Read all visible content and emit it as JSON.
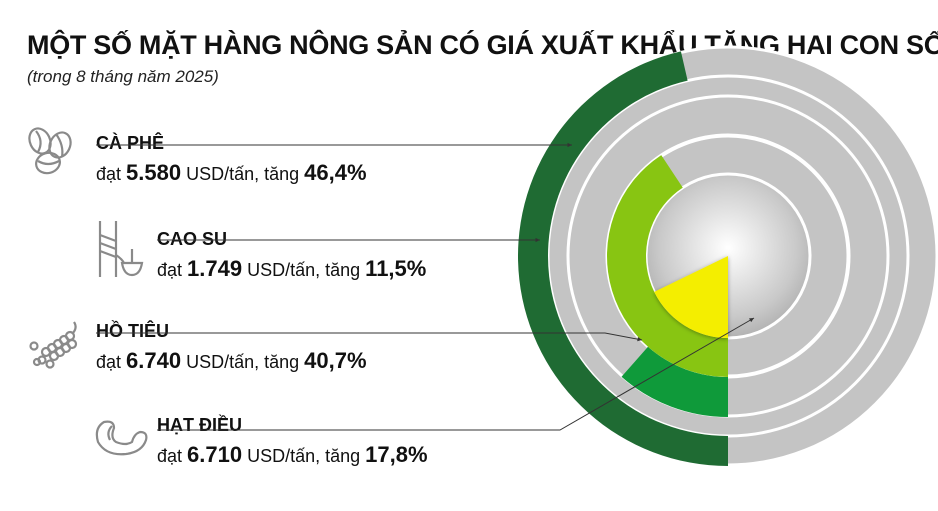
{
  "title": "MỘT SỐ MẶT HÀNG NÔNG SẢN CÓ GIÁ XUẤT KHẨU TĂNG HAI CON SỐ",
  "subtitle": "(trong 8 tháng năm 2025)",
  "items": [
    {
      "name": "CÀ PHÊ",
      "prefix": "đạt ",
      "price": "5.580",
      "unit": " USD/tấn, tăng ",
      "growth": "46,4%",
      "icon": "coffee-beans-icon"
    },
    {
      "name": "CAO SU",
      "prefix": "đạt ",
      "price": "1.749",
      "unit": " USD/tấn, tăng ",
      "growth": "11,5%",
      "icon": "rubber-tapping-icon"
    },
    {
      "name": "HỒ TIÊU",
      "prefix": "đạt ",
      "price": "6.740",
      "unit": " USD/tấn, tăng ",
      "growth": "40,7%",
      "icon": "pepper-icon"
    },
    {
      "name": "HẠT ĐIỀU",
      "prefix": "đạt ",
      "price": "6.710",
      "unit": " USD/tấn, tăng ",
      "growth": "17,8%",
      "icon": "cashew-icon"
    }
  ],
  "chart_data": {
    "type": "radial-bar",
    "categories": [
      "CÀ PHÊ",
      "CAO SU",
      "HỒ TIÊU",
      "HẠT ĐIỀU"
    ],
    "values": [
      46.4,
      11.5,
      40.7,
      17.8
    ],
    "unit": "%",
    "colors": [
      "#1f6b33",
      "#0f9a3a",
      "#88c512",
      "#f4ee00"
    ],
    "track_color": "#c4c4c4"
  }
}
